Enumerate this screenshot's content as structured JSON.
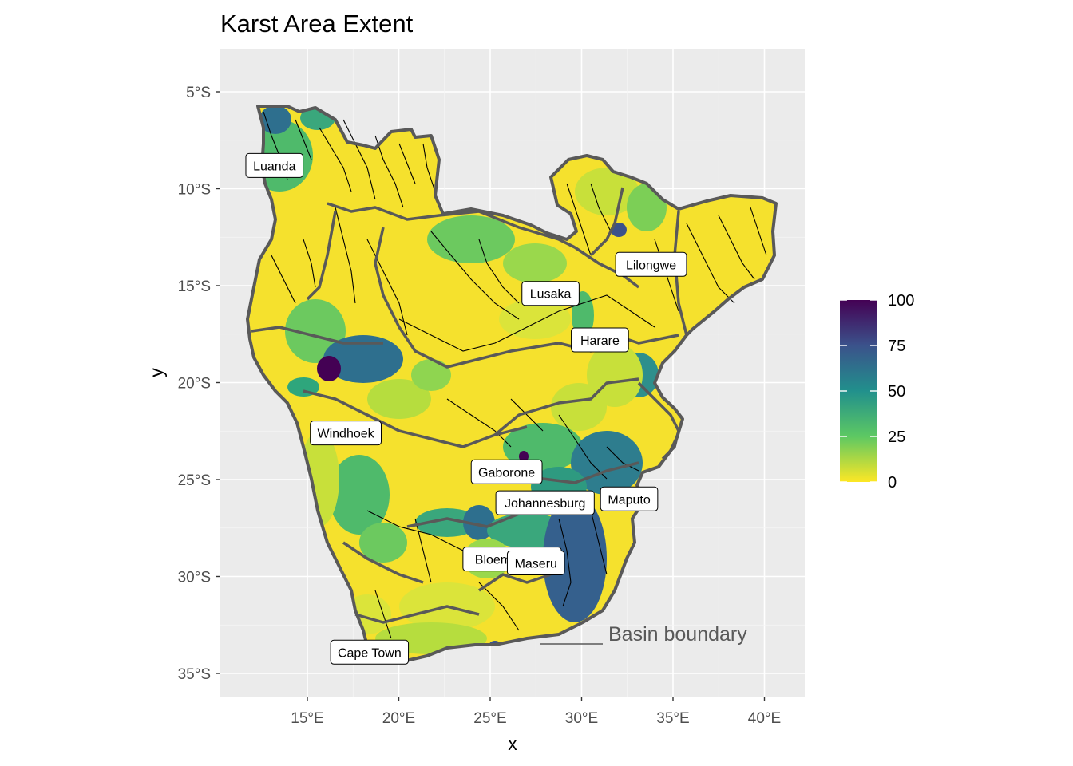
{
  "title": "Karst Area Extent",
  "x_axis": {
    "title": "x",
    "ticks": [
      "15°E",
      "20°E",
      "25°E",
      "30°E",
      "35°E",
      "40°E"
    ]
  },
  "y_axis": {
    "title": "y",
    "ticks": [
      "5°S",
      "10°S",
      "15°S",
      "20°S",
      "25°S",
      "30°S",
      "35°S"
    ]
  },
  "legend": {
    "labels": [
      "100",
      "75",
      "50",
      "25",
      "0"
    ],
    "colors": [
      "#440154",
      "#3b528b",
      "#21908c",
      "#5dc863",
      "#fde725"
    ]
  },
  "annotation": "Basin boundary",
  "cities": [
    {
      "name": "Luanda",
      "lon": 13.2,
      "lat": 8.8
    },
    {
      "name": "Lusaka",
      "lon": 28.3,
      "lat": 15.4
    },
    {
      "name": "Lilongwe",
      "lon": 33.8,
      "lat": 13.9
    },
    {
      "name": "Harare",
      "lon": 31.0,
      "lat": 17.8
    },
    {
      "name": "Windhoek",
      "lon": 17.1,
      "lat": 22.6
    },
    {
      "name": "Gaborone",
      "lon": 25.9,
      "lat": 24.6
    },
    {
      "name": "Johannesburg",
      "lon": 28.0,
      "lat": 26.2
    },
    {
      "name": "Maputo",
      "lon": 32.6,
      "lat": 26.0
    },
    {
      "name": "Bloemfontein",
      "lon": 26.2,
      "lat": 29.1
    },
    {
      "name": "Maseru",
      "lon": 27.5,
      "lat": 29.3
    },
    {
      "name": "Cape Town",
      "lon": 18.4,
      "lat": 33.9
    }
  ],
  "colors": {
    "panel": "#ebebeb",
    "grid": "#ffffff",
    "boundary": "#595959",
    "river": "#000000"
  }
}
